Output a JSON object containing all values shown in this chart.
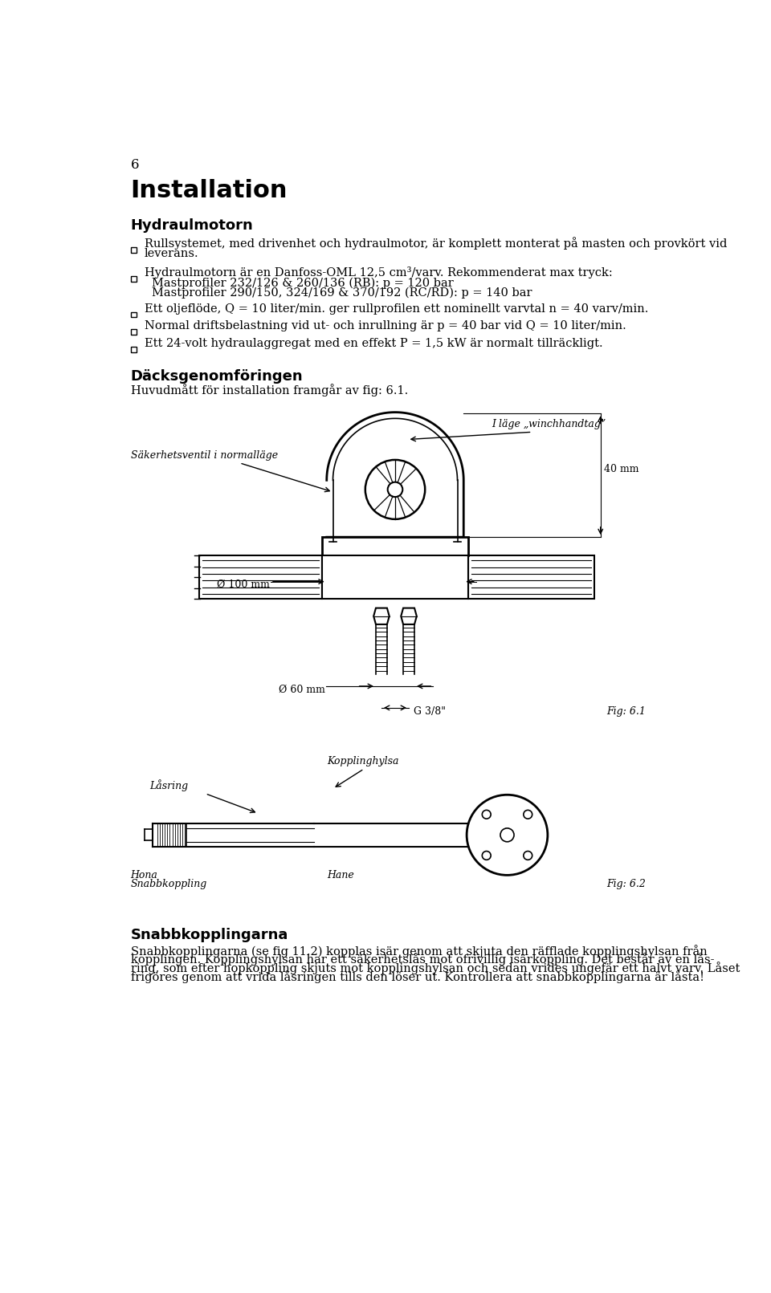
{
  "page_number": "6",
  "title": "Installation",
  "section1_heading": "Hydraulmotorn",
  "b1_line1": "Rullsystemet, med drivenhet och hydraulmotor, är komplett monterat på masten och provkört vid",
  "b1_line2": "leverans.",
  "b2_line1": "Hydraulmotorn är en Danfoss-OML 12,5 cm³/varv. Rekommenderat max tryck:",
  "b2_line2": "Mastprofiler 232/126 & 260/136 (RB): p = 120 bar",
  "b2_line3": "Mastprofiler 290/150, 324/169 & 370/192 (RC/RD): p = 140 bar",
  "b3_line1": "Ett oljeflöde, Q = 10 liter/min. ger rullprofilen ett nominellt varvtal n = 40 varv/min.",
  "b4_line1": "Normal driftsbelastning vid ut- och inrullning är p = 40 bar vid Q = 10 liter/min.",
  "b5_line1": "Ett 24-volt hydraulaggregat med en effekt P = 1,5 kW är normalt tillräckligt.",
  "section2_heading": "Däcksgenomföringen",
  "section2_intro": "Huvudmått för installation framgår av fig: 6.1.",
  "fig1_label": "Fig: 6.1",
  "fig1_annot1": "I läge „winchhandtag”",
  "fig1_annot2": "Säkerhetsventil i normalläge",
  "fig1_dim1": "Ø 100 mm",
  "fig1_dim2": "40 mm",
  "fig1_dim3": "Ø 60 mm",
  "fig1_dim4": "G 3/8\"",
  "fig2_label": "Fig: 6.2",
  "fig2_annot1": "Kopplinghylsa",
  "fig2_annot2": "Låsring",
  "fig2_annot3": "Hona",
  "fig2_annot4": "Snabbkoppling",
  "fig2_annot5": "Hane",
  "section3_heading": "Snabbkopplingarna",
  "s3t1": "Snabbkopplingarna (se fig 11.2) kopplas isär genom att skjuta den räfflade kopplingshylsan från",
  "s3t2": "kopplingen. Kopplingshylsan har ett säkerhetslås mot ofrivillig isärkoppling. Det består av en lås-",
  "s3t3": "ring, som efter hopkoppling skjuts mot kopplingshylsan och sedan vrides ungefär ett halvt varv. Låset",
  "s3t4": "frigöres genom att vrida låsringen tills den löser ut. Kontrollera att snabbkopplingarna är låsta!",
  "bg_color": "#ffffff",
  "text_color": "#000000"
}
